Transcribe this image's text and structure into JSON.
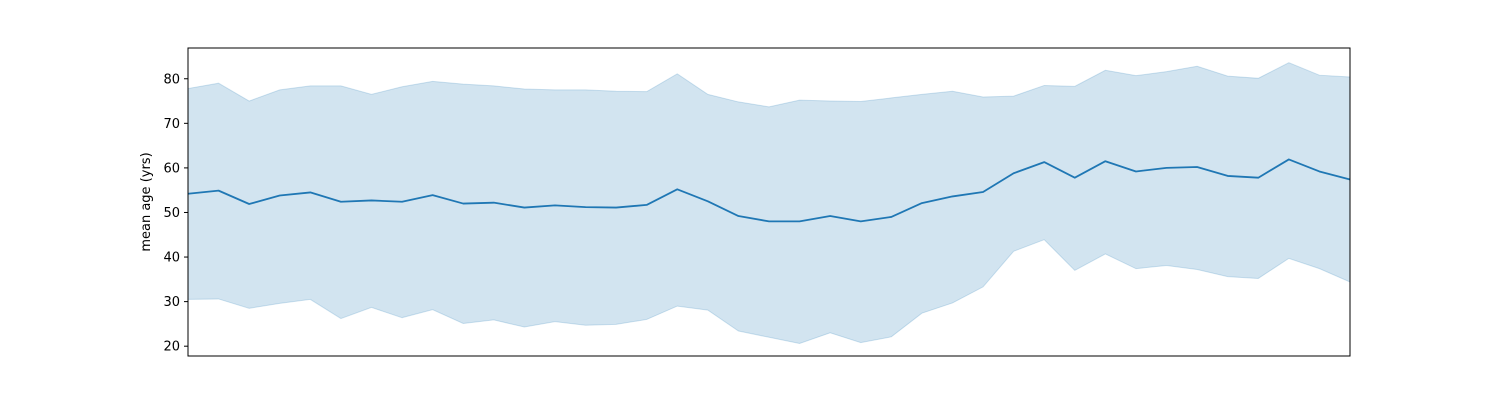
{
  "chart_data": {
    "type": "line",
    "title": "",
    "xlabel": "",
    "ylabel": "mean age (yrs)",
    "ylim": [
      17.8,
      86.9
    ],
    "yticks": [
      20,
      30,
      40,
      50,
      60,
      70,
      80
    ],
    "x_tick_labels_shown": false,
    "grid": false,
    "legend": "none",
    "colors": {
      "line": "#1f77b4",
      "band": "#1f77b4"
    },
    "series": [
      {
        "x": [
          0,
          1,
          2,
          3,
          4,
          5,
          6,
          7,
          8,
          9,
          10,
          11,
          12,
          13,
          14,
          15,
          16,
          17,
          18,
          19,
          20,
          21,
          22,
          23,
          24,
          25,
          26,
          27,
          28,
          29,
          30,
          31,
          32,
          33,
          34,
          35,
          36,
          37,
          38
        ],
        "values": [
          54.2,
          54.9,
          51.9,
          53.8,
          54.5,
          52.4,
          52.7,
          52.4,
          53.9,
          52.0,
          52.2,
          51.1,
          51.6,
          51.2,
          51.1,
          51.7,
          55.2,
          52.5,
          49.2,
          48.0,
          48.0,
          49.2,
          48.0,
          49.0,
          52.1,
          53.6,
          54.6,
          58.8,
          61.3,
          57.8,
          61.5,
          59.2,
          60.0,
          60.2,
          58.2,
          57.8,
          61.9,
          59.2,
          57.4
        ],
        "lower": [
          30.5,
          30.6,
          28.5,
          29.6,
          30.5,
          26.2,
          28.7,
          26.4,
          28.2,
          25.1,
          25.9,
          24.3,
          25.5,
          24.7,
          24.9,
          26.0,
          29.0,
          28.1,
          23.4,
          22.0,
          20.6,
          23.0,
          20.8,
          22.1,
          27.4,
          29.7,
          33.3,
          41.3,
          43.9,
          37.0,
          40.7,
          37.4,
          38.1,
          37.2,
          35.6,
          35.2,
          39.7,
          37.4,
          34.4
        ],
        "upper": [
          77.8,
          79.0,
          75.0,
          77.5,
          78.4,
          78.4,
          76.5,
          78.2,
          79.4,
          78.8,
          78.4,
          77.7,
          77.5,
          77.5,
          77.2,
          77.1,
          81.1,
          76.5,
          74.8,
          73.7,
          75.2,
          75.0,
          74.9,
          75.7,
          76.5,
          77.2,
          75.9,
          76.1,
          78.5,
          78.3,
          81.9,
          80.7,
          81.6,
          82.8,
          80.6,
          80.1,
          83.6,
          80.8,
          80.4
        ]
      }
    ]
  }
}
